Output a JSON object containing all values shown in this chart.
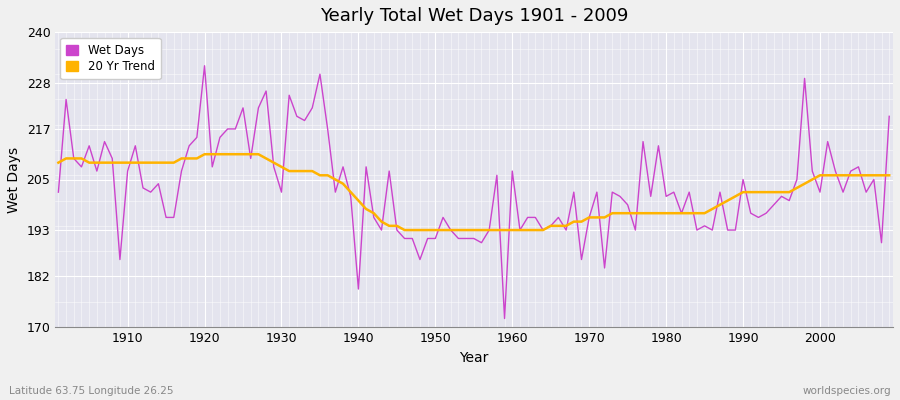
{
  "title": "Yearly Total Wet Days 1901 - 2009",
  "xlabel": "Year",
  "ylabel": "Wet Days",
  "subtitle": "Latitude 63.75 Longitude 26.25",
  "watermark": "worldspecies.org",
  "ylim": [
    170,
    240
  ],
  "xlim": [
    1901,
    2009
  ],
  "yticks": [
    170,
    182,
    193,
    205,
    217,
    228,
    240
  ],
  "line_color": "#CC44CC",
  "trend_color": "#FFB300",
  "bg_color": "#F0F0F0",
  "plot_bg_color": "#E4E4EE",
  "years": [
    1901,
    1902,
    1903,
    1904,
    1905,
    1906,
    1907,
    1908,
    1909,
    1910,
    1911,
    1912,
    1913,
    1914,
    1915,
    1916,
    1917,
    1918,
    1919,
    1920,
    1921,
    1922,
    1923,
    1924,
    1925,
    1926,
    1927,
    1928,
    1929,
    1930,
    1931,
    1932,
    1933,
    1934,
    1935,
    1936,
    1937,
    1938,
    1939,
    1940,
    1941,
    1942,
    1943,
    1944,
    1945,
    1946,
    1947,
    1948,
    1949,
    1950,
    1951,
    1952,
    1953,
    1954,
    1955,
    1956,
    1957,
    1958,
    1959,
    1960,
    1961,
    1962,
    1963,
    1964,
    1965,
    1966,
    1967,
    1968,
    1969,
    1970,
    1971,
    1972,
    1973,
    1974,
    1975,
    1976,
    1977,
    1978,
    1979,
    1980,
    1981,
    1982,
    1983,
    1984,
    1985,
    1986,
    1987,
    1988,
    1989,
    1990,
    1991,
    1992,
    1993,
    1994,
    1995,
    1996,
    1997,
    1998,
    1999,
    2000,
    2001,
    2002,
    2003,
    2004,
    2005,
    2006,
    2007,
    2008,
    2009
  ],
  "wet_days": [
    202,
    224,
    210,
    208,
    213,
    207,
    214,
    210,
    186,
    207,
    213,
    203,
    202,
    204,
    196,
    196,
    207,
    213,
    215,
    232,
    208,
    215,
    217,
    217,
    222,
    210,
    222,
    226,
    208,
    202,
    225,
    220,
    219,
    222,
    230,
    217,
    202,
    208,
    201,
    179,
    208,
    196,
    193,
    207,
    193,
    191,
    191,
    186,
    191,
    191,
    196,
    193,
    191,
    191,
    191,
    190,
    193,
    206,
    172,
    207,
    193,
    196,
    196,
    193,
    194,
    196,
    193,
    202,
    186,
    196,
    202,
    184,
    202,
    201,
    199,
    193,
    214,
    201,
    213,
    201,
    202,
    197,
    202,
    193,
    194,
    193,
    202,
    193,
    193,
    205,
    197,
    196,
    197,
    199,
    201,
    200,
    205,
    229,
    207,
    202,
    214,
    207,
    202,
    207,
    208,
    202,
    205,
    190,
    220
  ],
  "trend_years": [
    1901,
    1902,
    1903,
    1904,
    1905,
    1906,
    1907,
    1908,
    1909,
    1910,
    1911,
    1912,
    1913,
    1914,
    1915,
    1916,
    1917,
    1918,
    1919,
    1920,
    1921,
    1922,
    1923,
    1924,
    1925,
    1926,
    1927,
    1928,
    1929,
    1930,
    1931,
    1932,
    1933,
    1934,
    1935,
    1936,
    1937,
    1938,
    1939,
    1940,
    1941,
    1942,
    1943,
    1944,
    1945,
    1946,
    1947,
    1948,
    1949,
    1950,
    1951,
    1952,
    1953,
    1954,
    1955,
    1956,
    1957,
    1958,
    1959,
    1960,
    1961,
    1962,
    1963,
    1964,
    1965,
    1966,
    1967,
    1968,
    1969,
    1970,
    1971,
    1972,
    1973,
    1974,
    1975,
    1976,
    1977,
    1978,
    1979,
    1980,
    1981,
    1982,
    1983,
    1984,
    1985,
    1986,
    1987,
    1988,
    1989,
    1990,
    1991,
    1992,
    1993,
    1994,
    1995,
    1996,
    1997,
    1998,
    1999,
    2000,
    2001,
    2002,
    2003,
    2004,
    2005,
    2006,
    2007,
    2008,
    2009
  ],
  "trend_vals": [
    209,
    210,
    210,
    210,
    209,
    209,
    209,
    209,
    209,
    209,
    209,
    209,
    209,
    209,
    209,
    209,
    210,
    210,
    210,
    211,
    211,
    211,
    211,
    211,
    211,
    211,
    211,
    210,
    209,
    208,
    207,
    207,
    207,
    207,
    206,
    206,
    205,
    204,
    202,
    200,
    198,
    197,
    195,
    194,
    194,
    193,
    193,
    193,
    193,
    193,
    193,
    193,
    193,
    193,
    193,
    193,
    193,
    193,
    193,
    193,
    193,
    193,
    193,
    193,
    194,
    194,
    194,
    195,
    195,
    196,
    196,
    196,
    197,
    197,
    197,
    197,
    197,
    197,
    197,
    197,
    197,
    197,
    197,
    197,
    197,
    198,
    199,
    200,
    201,
    202,
    202,
    202,
    202,
    202,
    202,
    202,
    203,
    204,
    205,
    206,
    206,
    206,
    206,
    206,
    206,
    206,
    206,
    206,
    206
  ]
}
